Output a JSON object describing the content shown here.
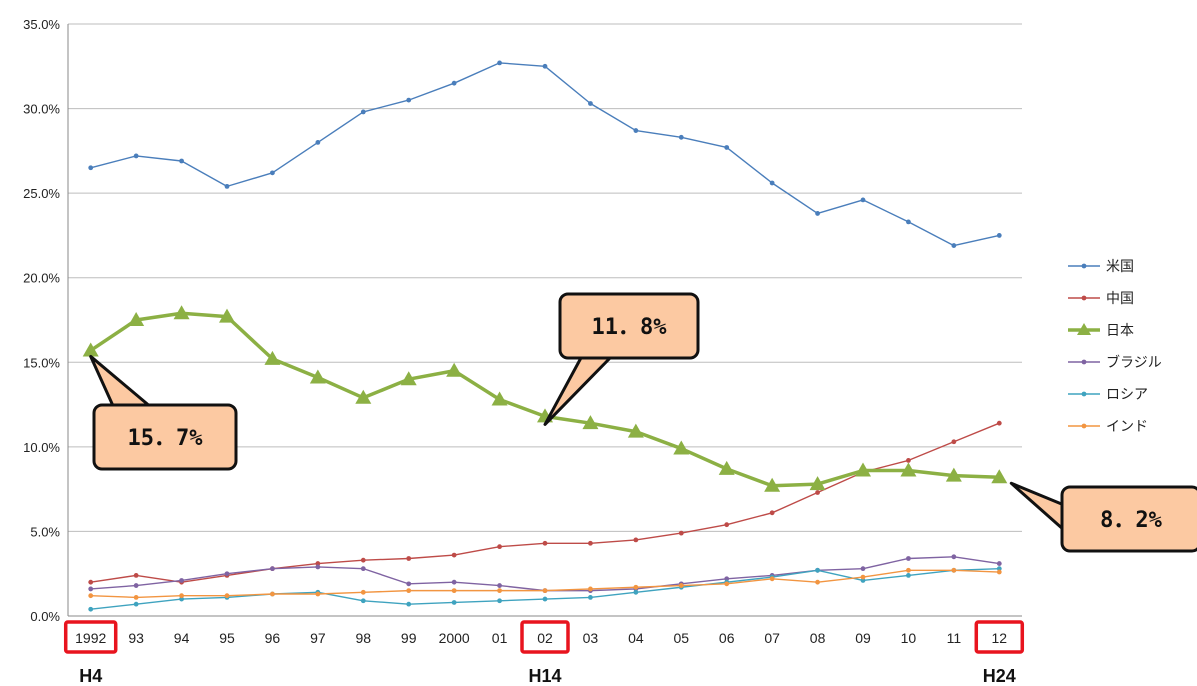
{
  "chart_data": {
    "type": "line",
    "categories": [
      "1992",
      "93",
      "94",
      "95",
      "96",
      "97",
      "98",
      "99",
      "2000",
      "01",
      "02",
      "03",
      "04",
      "05",
      "06",
      "07",
      "08",
      "09",
      "10",
      "11",
      "12"
    ],
    "y_tick_labels": [
      "0.0%",
      "5.0%",
      "10.0%",
      "15.0%",
      "20.0%",
      "25.0%",
      "30.0%",
      "35.0%"
    ],
    "ylim": [
      0,
      35
    ],
    "grid": true,
    "legend_position": "right",
    "era_labels": [
      {
        "category_index": 0,
        "text": "H4"
      },
      {
        "category_index": 10,
        "text": "H14"
      },
      {
        "category_index": 20,
        "text": "H24"
      }
    ],
    "highlighted_categories": [
      0,
      10,
      20
    ],
    "series": [
      {
        "name": "米国",
        "color": "#4a7ebb",
        "values": [
          26.5,
          27.2,
          26.9,
          25.4,
          26.2,
          28.0,
          29.8,
          30.5,
          31.5,
          32.7,
          32.5,
          30.3,
          28.7,
          28.3,
          27.7,
          25.6,
          23.8,
          24.6,
          23.3,
          21.9,
          22.5
        ]
      },
      {
        "name": "中国",
        "color": "#be4b48",
        "values": [
          2.0,
          2.4,
          2.0,
          2.4,
          2.8,
          3.1,
          3.3,
          3.4,
          3.6,
          4.1,
          4.3,
          4.3,
          4.5,
          4.9,
          5.4,
          6.1,
          7.3,
          8.5,
          9.2,
          10.3,
          11.4
        ]
      },
      {
        "name": "日本",
        "color": "#8cb044",
        "values": [
          15.7,
          17.5,
          17.9,
          17.7,
          15.2,
          14.1,
          12.9,
          14.0,
          14.5,
          12.8,
          11.8,
          11.4,
          10.9,
          9.9,
          8.7,
          7.7,
          7.8,
          8.6,
          8.6,
          8.3,
          8.2
        ]
      },
      {
        "name": "ブラジル",
        "color": "#7f63a2",
        "values": [
          1.6,
          1.8,
          2.1,
          2.5,
          2.8,
          2.9,
          2.8,
          1.9,
          2.0,
          1.8,
          1.5,
          1.5,
          1.6,
          1.9,
          2.2,
          2.4,
          2.7,
          2.8,
          3.4,
          3.5,
          3.1
        ]
      },
      {
        "name": "ロシア",
        "color": "#3fa3bf",
        "values": [
          0.4,
          0.7,
          1.0,
          1.1,
          1.3,
          1.4,
          0.9,
          0.7,
          0.8,
          0.9,
          1.0,
          1.1,
          1.4,
          1.7,
          2.0,
          2.3,
          2.7,
          2.1,
          2.4,
          2.7,
          2.8
        ]
      },
      {
        "name": "インド",
        "color": "#f29541",
        "values": [
          1.2,
          1.1,
          1.2,
          1.2,
          1.3,
          1.3,
          1.4,
          1.5,
          1.5,
          1.5,
          1.5,
          1.6,
          1.7,
          1.8,
          1.9,
          2.2,
          2.0,
          2.3,
          2.7,
          2.7,
          2.6
        ]
      }
    ],
    "annotations": [
      {
        "text": "15．7%",
        "series": "日本",
        "category_index": 0
      },
      {
        "text": "11．8%",
        "series": "日本",
        "category_index": 10
      },
      {
        "text": "8．2%",
        "series": "日本",
        "category_index": 20
      }
    ],
    "annotation_fill": "#fcc9a2"
  }
}
